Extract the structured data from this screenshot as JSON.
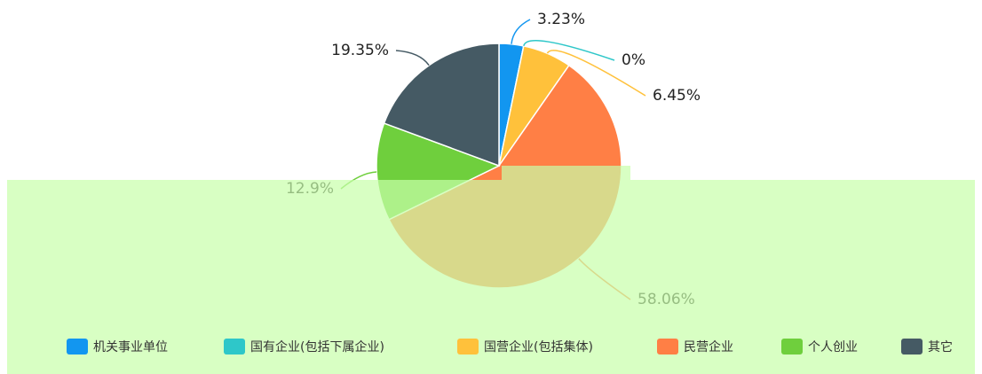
{
  "chart_data": {
    "type": "pie",
    "categories": [
      "机关事业单位",
      "国有企业(包括下属企业)",
      "国营企业(包括集体)",
      "民营企业",
      "个人创业",
      "其它"
    ],
    "values": [
      3.23,
      0,
      6.45,
      58.06,
      12.9,
      19.35
    ],
    "value_labels": [
      "3.23%",
      "0%",
      "6.45%",
      "58.06%",
      "12.9%",
      "19.35%"
    ],
    "colors": [
      "#1296f0",
      "#2ec7c9",
      "#ffc13b",
      "#ff7f45",
      "#6fcf3d",
      "#455a64"
    ],
    "legend": "bottom"
  }
}
